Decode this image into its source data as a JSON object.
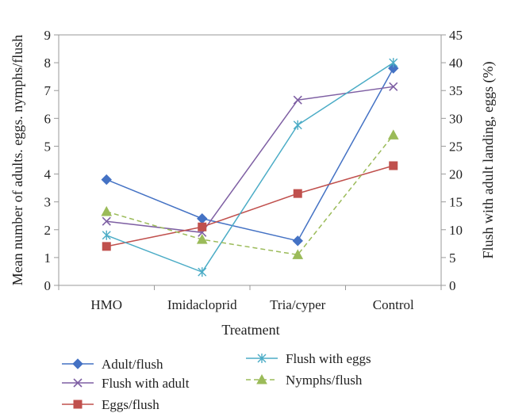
{
  "chart_data": {
    "type": "line",
    "categories": [
      "HMO",
      "Imidacloprid",
      "Tria/cyper",
      "Control"
    ],
    "xlabel": "Treatment",
    "ylabel": "Mean number of adults. eggs. nymphs/flush",
    "y2label": "Flush with adult landing, eggs (%)",
    "ylim": [
      0,
      9
    ],
    "y2lim": [
      0,
      45
    ],
    "yticks": [
      0,
      1,
      2,
      3,
      4,
      5,
      6,
      7,
      8,
      9
    ],
    "y2ticks": [
      0,
      5,
      10,
      15,
      20,
      25,
      30,
      35,
      40,
      45
    ],
    "grid": false,
    "legend_position": "bottom",
    "series": [
      {
        "name": "Adult/flush",
        "axis": "left",
        "marker": "diamond",
        "color": "#4472c4",
        "dash": false,
        "values": [
          3.8,
          2.4,
          1.6,
          7.8
        ]
      },
      {
        "name": "Flush with adult",
        "axis": "right",
        "marker": "x",
        "color": "#7e5fa3",
        "dash": false,
        "values": [
          11.5,
          9.5,
          33.3,
          35.7
        ]
      },
      {
        "name": "Eggs/flush",
        "axis": "left",
        "marker": "square",
        "color": "#c0504d",
        "dash": false,
        "values": [
          1.4,
          2.1,
          3.3,
          4.3
        ]
      },
      {
        "name": "Flush with eggs",
        "axis": "right",
        "marker": "star",
        "color": "#4bacc6",
        "dash": false,
        "values": [
          9.0,
          2.4,
          28.8,
          40.0
        ]
      },
      {
        "name": "Nymphs/flush",
        "axis": "left",
        "marker": "triangle",
        "color": "#9bbb59",
        "dash": true,
        "values": [
          2.65,
          1.65,
          1.1,
          5.4
        ]
      }
    ]
  }
}
